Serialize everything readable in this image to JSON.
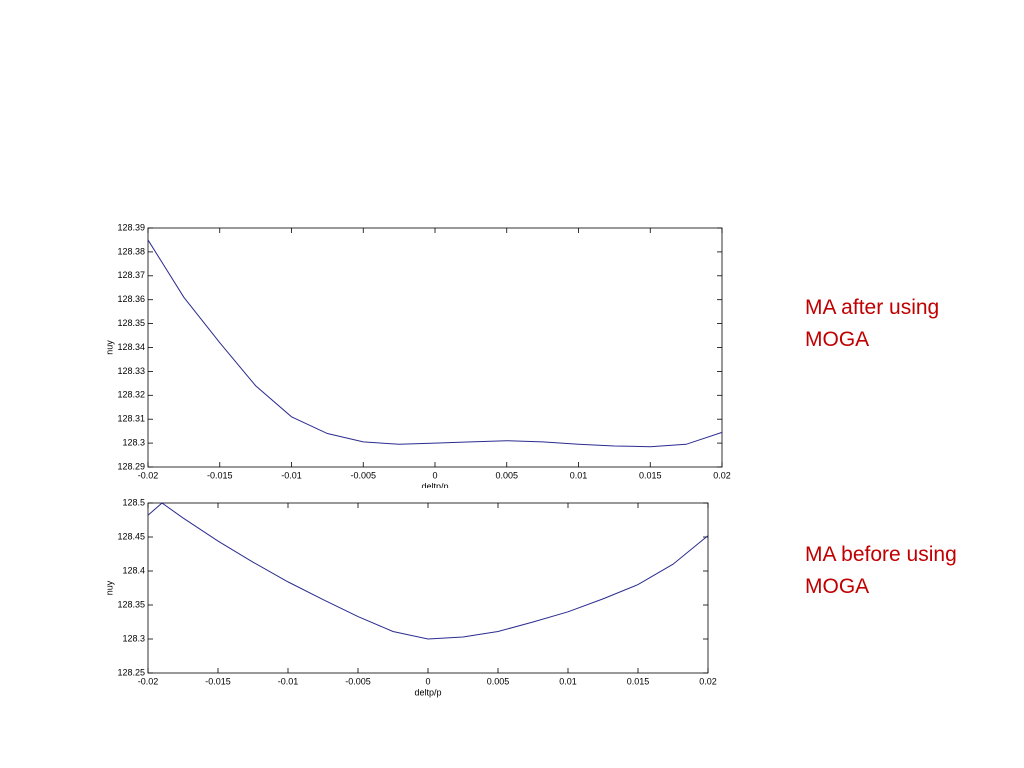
{
  "chart_data": [
    {
      "type": "line",
      "ylabel": "nuy",
      "xlabel": "deltp/p",
      "annotation": "MA after using MOGA",
      "x": [
        -0.02,
        -0.0175,
        -0.015,
        -0.0125,
        -0.01,
        -0.0075,
        -0.005,
        -0.0025,
        0,
        0.0025,
        0.005,
        0.0075,
        0.01,
        0.0125,
        0.015,
        0.0175,
        0.02
      ],
      "series": [
        {
          "color": "#2b2b8f",
          "values": [
            128.385,
            128.361,
            128.342,
            128.324,
            128.311,
            128.304,
            128.3005,
            128.2995,
            128.3,
            128.3005,
            128.301,
            128.3005,
            128.2995,
            128.2988,
            128.2985,
            128.2995,
            128.3045
          ]
        }
      ],
      "xlim": [
        -0.02,
        0.02
      ],
      "ylim": [
        128.29,
        128.39
      ],
      "xticks": [
        -0.02,
        -0.015,
        -0.01,
        -0.005,
        0,
        0.005,
        0.01,
        0.015,
        0.02
      ],
      "yticks": [
        128.29,
        128.3,
        128.31,
        128.32,
        128.33,
        128.34,
        128.35,
        128.36,
        128.37,
        128.38,
        128.39
      ]
    },
    {
      "type": "line",
      "ylabel": "nuy",
      "xlabel": "deltp/p",
      "annotation": "MA before using MOGA",
      "x": [
        -0.02,
        -0.019,
        -0.0175,
        -0.015,
        -0.0125,
        -0.01,
        -0.0075,
        -0.005,
        -0.0025,
        0,
        0.0025,
        0.005,
        0.0075,
        0.01,
        0.0125,
        0.015,
        0.0175,
        0.02
      ],
      "series": [
        {
          "color": "#2b2b8f",
          "values": [
            128.482,
            128.5,
            128.478,
            128.444,
            128.413,
            128.384,
            128.358,
            128.333,
            128.311,
            128.3,
            128.303,
            128.311,
            128.325,
            128.34,
            128.359,
            128.38,
            128.41,
            128.452
          ]
        }
      ],
      "xlim": [
        -0.02,
        0.02
      ],
      "ylim": [
        128.25,
        128.5
      ],
      "xticks": [
        -0.02,
        -0.015,
        -0.01,
        -0.005,
        0,
        0.005,
        0.01,
        0.015,
        0.02
      ],
      "yticks": [
        128.25,
        128.3,
        128.35,
        128.4,
        128.45,
        128.5
      ]
    }
  ]
}
